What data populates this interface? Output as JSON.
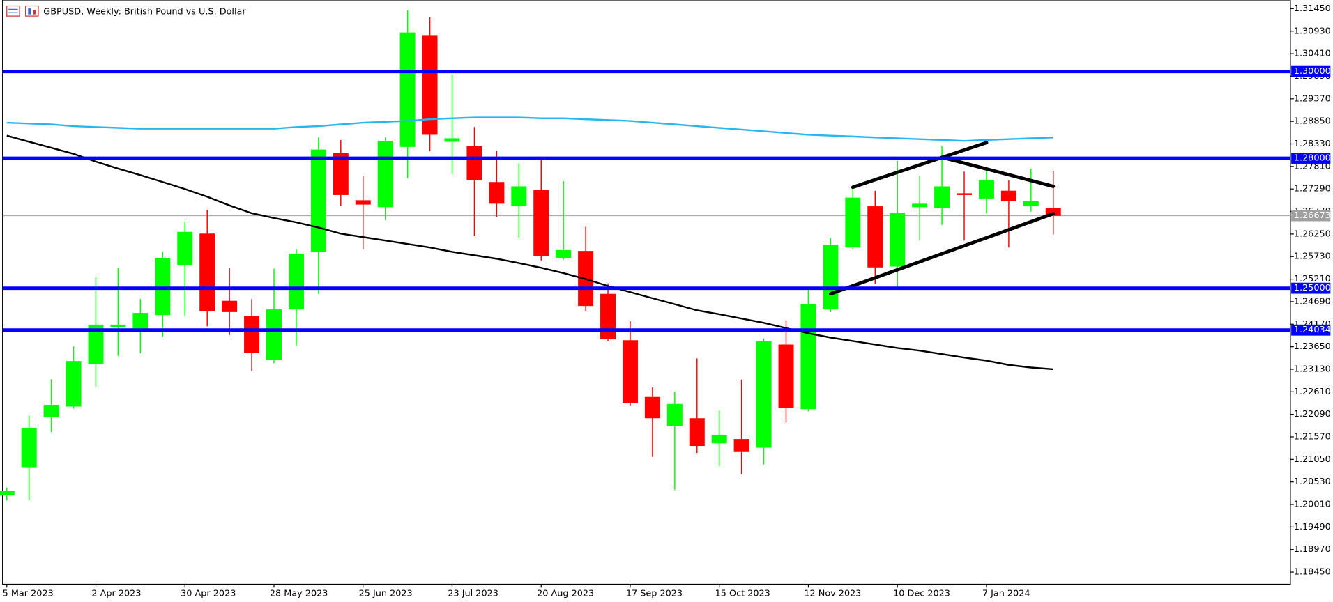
{
  "chart_data": {
    "type": "candlestick",
    "title": "GBPUSD, Weekly:  British Pound vs U.S. Dollar",
    "categories": [
      "5 Mar 2023",
      null,
      null,
      null,
      "2 Apr 2023",
      null,
      null,
      null,
      "30 Apr 2023",
      null,
      null,
      null,
      "28 May 2023",
      null,
      null,
      null,
      "25 Jun 2023",
      null,
      null,
      null,
      "23 Jul 2023",
      null,
      null,
      null,
      "20 Aug 2023",
      null,
      null,
      null,
      "17 Sep 2023",
      null,
      null,
      null,
      "15 Oct 2023",
      null,
      null,
      null,
      "12 Nov 2023",
      null,
      null,
      null,
      "10 Dec 2023",
      null,
      null,
      null,
      "7 Jan 2024",
      null,
      null,
      null
    ],
    "open": [
      1.2022,
      1.2087,
      1.2202,
      1.2227,
      1.2325,
      1.241,
      1.2406,
      1.2438,
      1.2554,
      1.2626,
      1.2471,
      1.2436,
      1.2334,
      1.2451,
      1.2584,
      1.2812,
      1.2703,
      1.2687,
      1.2826,
      1.3084,
      1.2838,
      1.2828,
      1.2745,
      1.2689,
      1.2727,
      1.257,
      1.2586,
      1.2487,
      1.238,
      1.2249,
      1.2182,
      1.22,
      1.2142,
      1.2152,
      1.2132,
      1.237,
      1.2221,
      1.2451,
      1.2594,
      1.2689,
      1.255,
      1.2687,
      1.2685,
      1.2719,
      1.2707,
      1.2725,
      1.2689,
      1.2685
    ],
    "high": [
      1.204,
      1.2206,
      1.2289,
      1.2366,
      1.2525,
      1.2547,
      1.2475,
      1.2584,
      1.2654,
      1.2681,
      1.2547,
      1.2475,
      1.2545,
      1.259,
      1.2848,
      1.2842,
      1.2759,
      1.2848,
      1.3141,
      1.3125,
      1.2994,
      1.2872,
      1.2818,
      1.2788,
      1.2798,
      1.2747,
      1.2642,
      1.2511,
      1.2424,
      1.2271,
      1.2261,
      1.2338,
      1.2218,
      1.2289,
      1.2384,
      1.2426,
      1.2501,
      1.2616,
      1.2733,
      1.2725,
      1.2794,
      1.2759,
      1.2828,
      1.2769,
      1.2778,
      1.2749,
      1.2776,
      1.277
    ],
    "low": [
      1.201,
      1.2011,
      1.2168,
      1.2222,
      1.2273,
      1.2344,
      1.235,
      1.2388,
      1.2436,
      1.2412,
      1.2392,
      1.2309,
      1.2327,
      1.2368,
      1.2487,
      1.2689,
      1.259,
      1.2657,
      1.2753,
      1.2816,
      1.2763,
      1.262,
      1.2665,
      1.2616,
      1.2564,
      1.2566,
      1.2447,
      1.2378,
      1.2229,
      1.2111,
      1.2035,
      1.212,
      1.2089,
      1.2071,
      1.2093,
      1.219,
      1.2216,
      1.2445,
      1.259,
      1.2509,
      1.2501,
      1.261,
      1.2646,
      1.261,
      1.2673,
      1.2594,
      1.2677,
      1.2624
    ],
    "close": [
      1.2033,
      1.2178,
      1.2231,
      1.2332,
      1.2416,
      1.2416,
      1.2443,
      1.257,
      1.263,
      1.2447,
      1.2445,
      1.235,
      1.2451,
      1.258,
      1.282,
      1.2715,
      1.2693,
      1.284,
      1.309,
      1.2854,
      1.2846,
      1.2749,
      1.2695,
      1.2735,
      1.2574,
      1.2588,
      1.2459,
      1.2382,
      1.2235,
      1.22,
      1.2233,
      1.2136,
      1.2162,
      1.2122,
      1.2378,
      1.2223,
      1.2463,
      1.26,
      1.2709,
      1.2548,
      1.2673,
      1.2695,
      1.2735,
      1.2715,
      1.2749,
      1.2701,
      1.2701,
      1.2667
    ],
    "up_color": "#00ff00",
    "down_color": "#ff0000",
    "lines": [
      {
        "color": "#000000",
        "values": [
          1.2852,
          1.2838,
          1.2824,
          1.281,
          1.2792,
          1.2776,
          1.2761,
          1.2745,
          1.2729,
          1.2711,
          1.2691,
          1.2673,
          1.2662,
          1.2652,
          1.264,
          1.2626,
          1.2618,
          1.261,
          1.2602,
          1.2594,
          1.2584,
          1.2576,
          1.2568,
          1.2558,
          1.2547,
          1.2535,
          1.2521,
          1.2505,
          1.2491,
          1.2477,
          1.2463,
          1.2449,
          1.244,
          1.243,
          1.242,
          1.2408,
          1.2396,
          1.2386,
          1.2378,
          1.237,
          1.2362,
          1.2356,
          1.2348,
          1.234,
          1.2333,
          1.2323,
          1.2317,
          1.2313
        ]
      },
      {
        "color": "#26b7f0",
        "values": [
          1.2882,
          1.288,
          1.2878,
          1.2874,
          1.2872,
          1.287,
          1.2868,
          1.2868,
          1.2868,
          1.2868,
          1.2868,
          1.2868,
          1.2868,
          1.2872,
          1.2874,
          1.2878,
          1.2882,
          1.2884,
          1.2886,
          1.289,
          1.2892,
          1.2894,
          1.2894,
          1.2894,
          1.2892,
          1.2892,
          1.289,
          1.2888,
          1.2886,
          1.2882,
          1.2878,
          1.2874,
          1.287,
          1.2866,
          1.2862,
          1.2858,
          1.2854,
          1.2852,
          1.285,
          1.2848,
          1.2846,
          1.2844,
          1.2842,
          1.284,
          1.2842,
          1.2844,
          1.2846,
          1.2848
        ]
      }
    ],
    "trendlines": [
      {
        "x": [
          38,
          44
        ],
        "y": [
          1.2733,
          1.2836
        ]
      },
      {
        "x": [
          42,
          47
        ],
        "y": [
          1.2802,
          1.2735
        ]
      },
      {
        "x": [
          37,
          47
        ],
        "y": [
          1.2487,
          1.2672
        ]
      }
    ],
    "levels": [
      {
        "value": 1.3,
        "label": "1.30000"
      },
      {
        "value": 1.28,
        "label": "1.28000"
      },
      {
        "value": 1.25,
        "label": "1.25000"
      },
      {
        "value": 1.24034,
        "label": "1.24034"
      }
    ],
    "level_color": "#0000ff",
    "price_line": {
      "value": 1.26673,
      "label": "1.26673"
    },
    "ylim": [
      1.1817,
      1.3165
    ],
    "yticks": [
      {
        "value": 1.3145,
        "label": "1.31450"
      },
      {
        "value": 1.3093,
        "label": "1.30930"
      },
      {
        "value": 1.3041,
        "label": "1.30410"
      },
      {
        "value": 1.2989,
        "label": "1.29890"
      },
      {
        "value": 1.2937,
        "label": "1.29370"
      },
      {
        "value": 1.2885,
        "label": "1.28850"
      },
      {
        "value": 1.2833,
        "label": "1.28330"
      },
      {
        "value": 1.2781,
        "label": "1.27810"
      },
      {
        "value": 1.2729,
        "label": "1.27290"
      },
      {
        "value": 1.2677,
        "label": "1.26770"
      },
      {
        "value": 1.2625,
        "label": "1.26250"
      },
      {
        "value": 1.2573,
        "label": "1.25730"
      },
      {
        "value": 1.2521,
        "label": "1.25210"
      },
      {
        "value": 1.2469,
        "label": "1.24690"
      },
      {
        "value": 1.2417,
        "label": "1.24170"
      },
      {
        "value": 1.2365,
        "label": "1.23650"
      },
      {
        "value": 1.2313,
        "label": "1.23130"
      },
      {
        "value": 1.2261,
        "label": "1.22610"
      },
      {
        "value": 1.2209,
        "label": "1.22090"
      },
      {
        "value": 1.2157,
        "label": "1.21570"
      },
      {
        "value": 1.2105,
        "label": "1.21050"
      },
      {
        "value": 1.2053,
        "label": "1.20530"
      },
      {
        "value": 1.2001,
        "label": "1.20010"
      },
      {
        "value": 1.1949,
        "label": "1.19490"
      },
      {
        "value": 1.1897,
        "label": "1.18970"
      },
      {
        "value": 1.1845,
        "label": "1.18450"
      }
    ]
  }
}
